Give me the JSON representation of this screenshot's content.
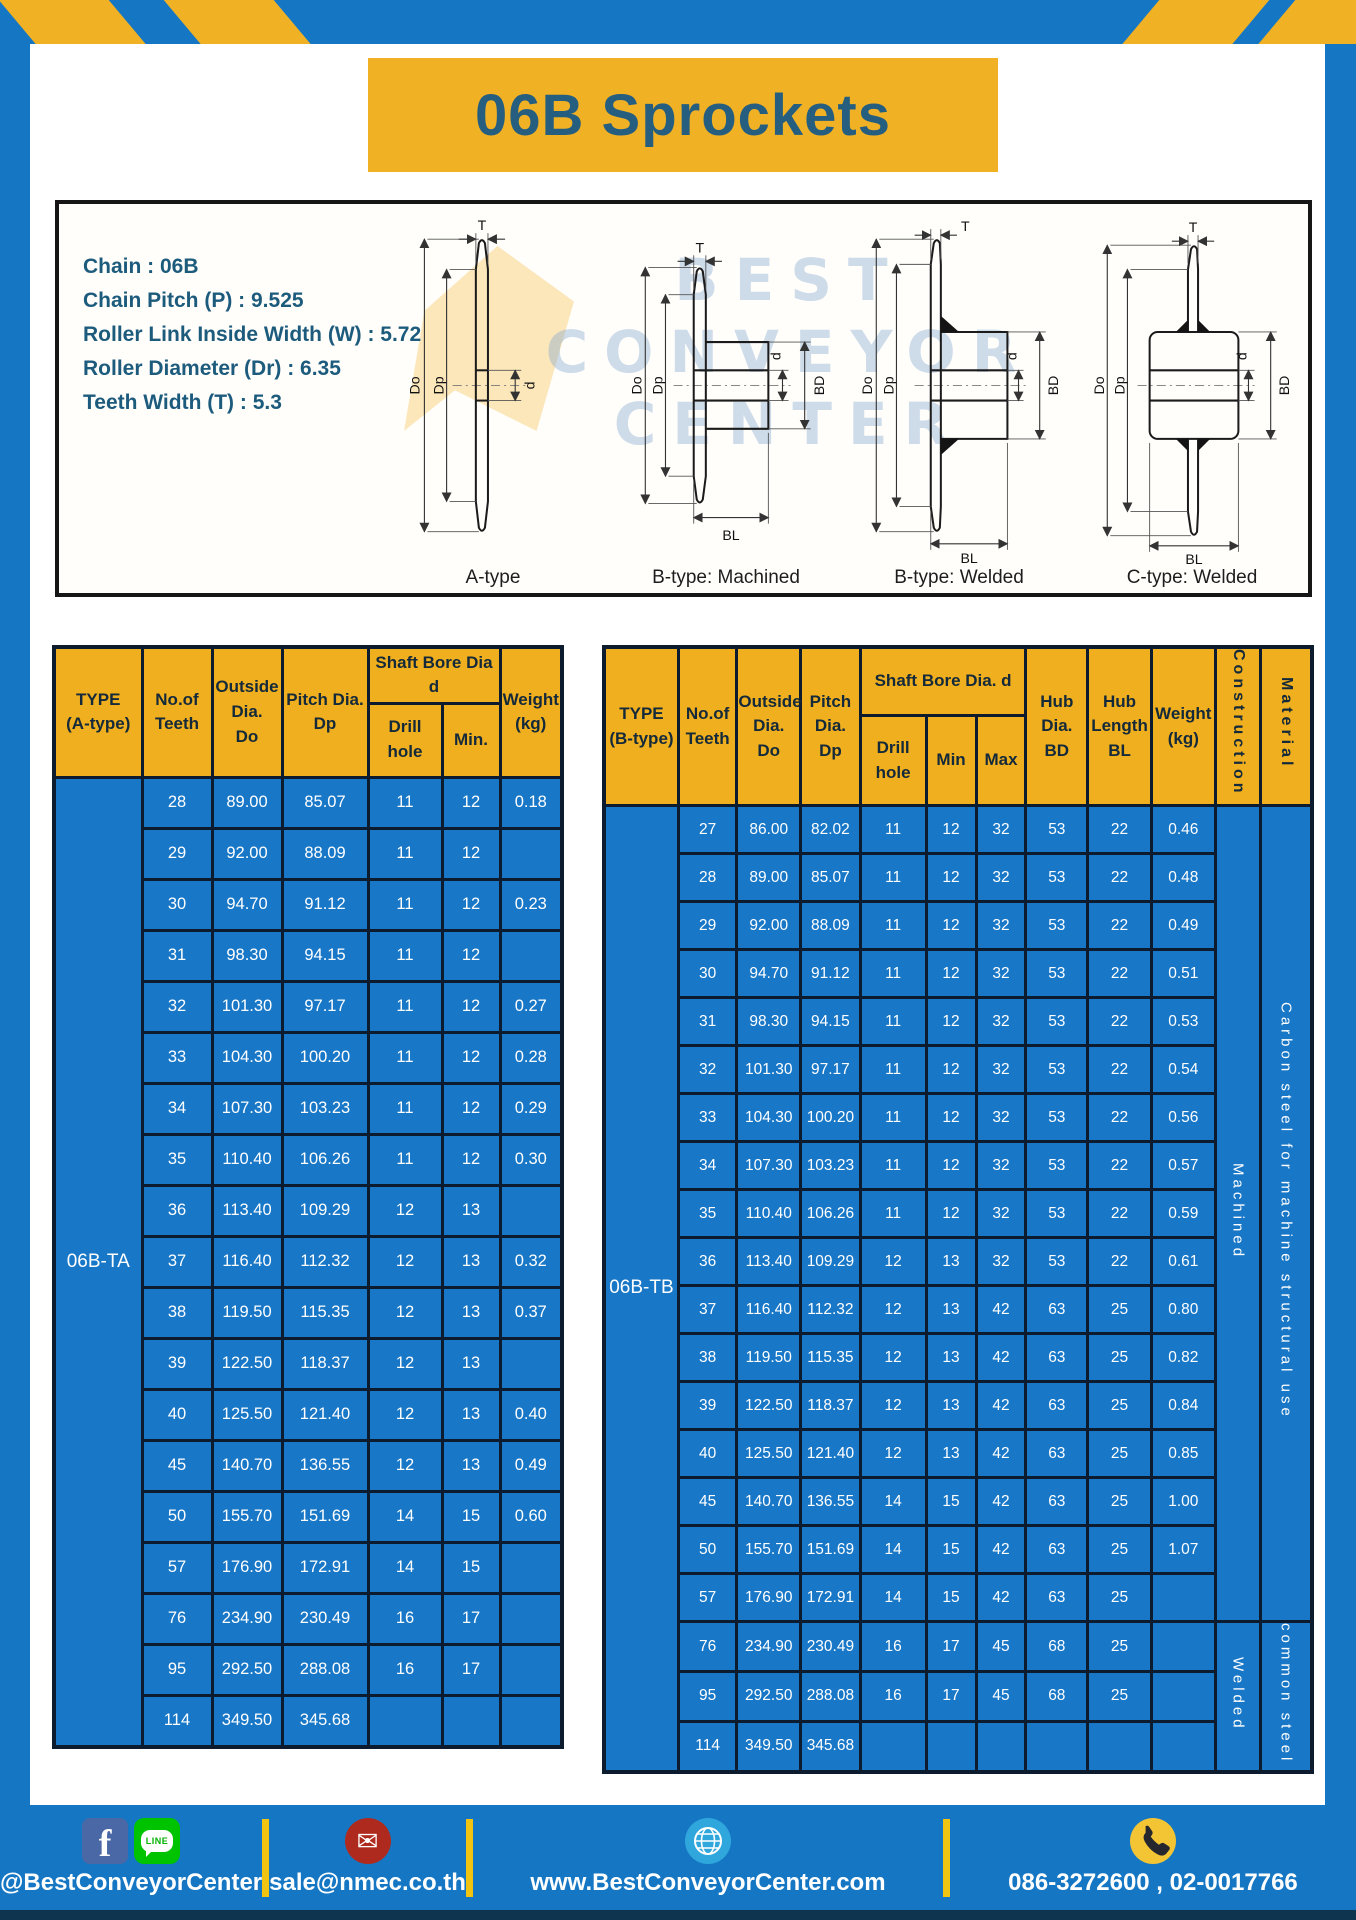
{
  "page": {
    "title": "06B Sprockets"
  },
  "specs": {
    "lines": [
      "Chain  : 06B",
      "Chain Pitch (P)  :  9.525",
      "Roller Link Inside Width (W)  :  5.72",
      "Roller Diameter (Dr)  : 6.35",
      "Teeth Width (T)  :  5.3"
    ]
  },
  "watermark": {
    "line1": "BEST",
    "line2": "CONVEYOR",
    "line3": "CENTER"
  },
  "diagrams": {
    "dims": {
      "t": "T",
      "do": "Do",
      "dp": "Dp",
      "d": "d",
      "bd": "BD",
      "bl": "BL"
    },
    "captions": {
      "a": "A-type",
      "b_machined": "B-type: Machined",
      "b_welded": "B-type: Welded",
      "c_welded": "C-type: Welded"
    }
  },
  "table_a": {
    "type_label": "06B-TA",
    "headers": {
      "type": "TYPE\n(A-type)",
      "teeth": "No.of\nTeeth",
      "outside": "Outside\nDia.\nDo",
      "pitch": "Pitch Dia.\nDp",
      "shaft_bore": "Shaft Bore Dia d",
      "drill": "Drill hole",
      "min": "Min.",
      "weight": "Weight\n(kg)"
    },
    "rows": [
      [
        "28",
        "89.00",
        "85.07",
        "11",
        "12",
        "0.18"
      ],
      [
        "29",
        "92.00",
        "88.09",
        "11",
        "12",
        ""
      ],
      [
        "30",
        "94.70",
        "91.12",
        "11",
        "12",
        "0.23"
      ],
      [
        "31",
        "98.30",
        "94.15",
        "11",
        "12",
        ""
      ],
      [
        "32",
        "101.30",
        "97.17",
        "11",
        "12",
        "0.27"
      ],
      [
        "33",
        "104.30",
        "100.20",
        "11",
        "12",
        "0.28"
      ],
      [
        "34",
        "107.30",
        "103.23",
        "11",
        "12",
        "0.29"
      ],
      [
        "35",
        "110.40",
        "106.26",
        "11",
        "12",
        "0.30"
      ],
      [
        "36",
        "113.40",
        "109.29",
        "12",
        "13",
        ""
      ],
      [
        "37",
        "116.40",
        "112.32",
        "12",
        "13",
        "0.32"
      ],
      [
        "38",
        "119.50",
        "115.35",
        "12",
        "13",
        "0.37"
      ],
      [
        "39",
        "122.50",
        "118.37",
        "12",
        "13",
        ""
      ],
      [
        "40",
        "125.50",
        "121.40",
        "12",
        "13",
        "0.40"
      ],
      [
        "45",
        "140.70",
        "136.55",
        "12",
        "13",
        "0.49"
      ],
      [
        "50",
        "155.70",
        "151.69",
        "14",
        "15",
        "0.60"
      ],
      [
        "57",
        "176.90",
        "172.91",
        "14",
        "15",
        ""
      ],
      [
        "76",
        "234.90",
        "230.49",
        "16",
        "17",
        ""
      ],
      [
        "95",
        "292.50",
        "288.08",
        "16",
        "17",
        ""
      ],
      [
        "114",
        "349.50",
        "345.68",
        "",
        "",
        ""
      ]
    ]
  },
  "table_b": {
    "type_label": "06B-TB",
    "headers": {
      "type": "TYPE\n(B-type)",
      "teeth": "No.of\nTeeth",
      "outside": "Outside\nDia.\nDo",
      "pitch": "Pitch\nDia.\nDp",
      "shaft_bore": "Shaft Bore Dia. d",
      "drill": "Drill hole",
      "min": "Min",
      "max": "Max",
      "hub_dia": "Hub\nDia.\nBD",
      "hub_length": "Hub\nLength\nBL",
      "weight": "Weight\n(kg)",
      "construction": "Construction",
      "material": "Material"
    },
    "rows": [
      [
        "27",
        "86.00",
        "82.02",
        "11",
        "12",
        "32",
        "53",
        "22",
        "0.46"
      ],
      [
        "28",
        "89.00",
        "85.07",
        "11",
        "12",
        "32",
        "53",
        "22",
        "0.48"
      ],
      [
        "29",
        "92.00",
        "88.09",
        "11",
        "12",
        "32",
        "53",
        "22",
        "0.49"
      ],
      [
        "30",
        "94.70",
        "91.12",
        "11",
        "12",
        "32",
        "53",
        "22",
        "0.51"
      ],
      [
        "31",
        "98.30",
        "94.15",
        "11",
        "12",
        "32",
        "53",
        "22",
        "0.53"
      ],
      [
        "32",
        "101.30",
        "97.17",
        "11",
        "12",
        "32",
        "53",
        "22",
        "0.54"
      ],
      [
        "33",
        "104.30",
        "100.20",
        "11",
        "12",
        "32",
        "53",
        "22",
        "0.56"
      ],
      [
        "34",
        "107.30",
        "103.23",
        "11",
        "12",
        "32",
        "53",
        "22",
        "0.57"
      ],
      [
        "35",
        "110.40",
        "106.26",
        "11",
        "12",
        "32",
        "53",
        "22",
        "0.59"
      ],
      [
        "36",
        "113.40",
        "109.29",
        "12",
        "13",
        "32",
        "53",
        "22",
        "0.61"
      ],
      [
        "37",
        "116.40",
        "112.32",
        "12",
        "13",
        "42",
        "63",
        "25",
        "0.80"
      ],
      [
        "38",
        "119.50",
        "115.35",
        "12",
        "13",
        "42",
        "63",
        "25",
        "0.82"
      ],
      [
        "39",
        "122.50",
        "118.37",
        "12",
        "13",
        "42",
        "63",
        "25",
        "0.84"
      ],
      [
        "40",
        "125.50",
        "121.40",
        "12",
        "13",
        "42",
        "63",
        "25",
        "0.85"
      ],
      [
        "45",
        "140.70",
        "136.55",
        "14",
        "15",
        "42",
        "63",
        "25",
        "1.00"
      ],
      [
        "50",
        "155.70",
        "151.69",
        "14",
        "15",
        "42",
        "63",
        "25",
        "1.07"
      ],
      [
        "57",
        "176.90",
        "172.91",
        "14",
        "15",
        "42",
        "63",
        "25",
        ""
      ],
      [
        "76",
        "234.90",
        "230.49",
        "16",
        "17",
        "45",
        "68",
        "25",
        ""
      ],
      [
        "95",
        "292.50",
        "288.08",
        "16",
        "17",
        "45",
        "68",
        "25",
        ""
      ],
      [
        "114",
        "349.50",
        "345.68",
        "",
        "",
        "",
        "",
        "",
        ""
      ]
    ],
    "construction_groups": [
      {
        "label": "Machined",
        "span": 17
      },
      {
        "label": "Welded",
        "span": 3
      }
    ],
    "material_groups": [
      {
        "label": "Carbon steel for machine structural use",
        "span": 17
      },
      {
        "label": "common steel",
        "span": 3
      }
    ]
  },
  "footer": {
    "facebook_label": "f",
    "line_label": "LINE",
    "social_handle": "@BestConveyorCenter",
    "email": "sale@nmec.co.th",
    "website": "www.BestConveyorCenter.com",
    "phones": "086-3272600 , 02-0017766"
  },
  "colors": {
    "frame_blue": "#1577C4",
    "table_cell_blue": "#1877C6",
    "header_yellow": "#EFAF1E",
    "banner_yellow": "#F0B125",
    "title_navy": "#265E80",
    "spec_text_navy": "#1D5B7D",
    "table_border": "#0C1C2E",
    "footer_strip_navy": "#0F3450",
    "facebook_blue": "#4A68A5",
    "line_green": "#00C300",
    "mail_red": "#AF2A1E",
    "globe_blue": "#2FA7DC",
    "phone_yellow": "#F3C433",
    "separator_yellow": "#F1C411"
  }
}
